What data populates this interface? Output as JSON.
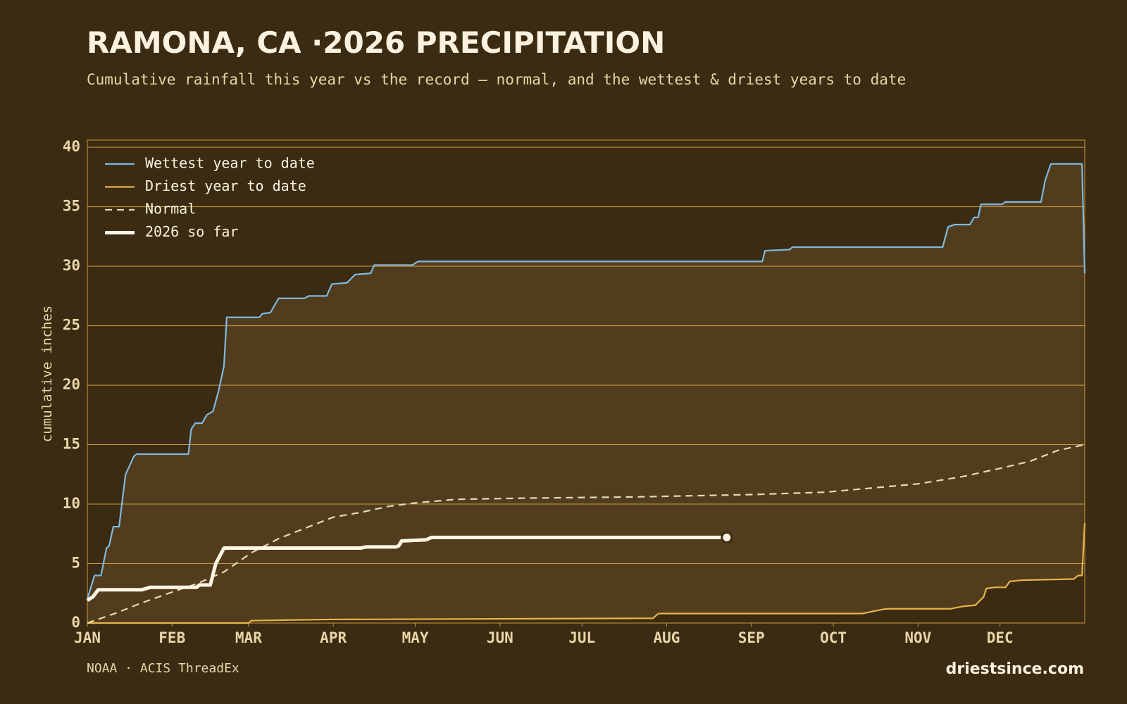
{
  "chart_data": {
    "type": "line",
    "title": "RAMONA, CA ·2026 PRECIPITATION",
    "subtitle": "Cumulative rainfall this year vs the record — normal, and the wettest & driest years to date",
    "y_label": "cumulative inches",
    "source": "NOAA · ACIS ThreadEx",
    "brand": "driestsince.com",
    "xlim": [
      0,
      365
    ],
    "ylim": [
      0,
      40.6
    ],
    "xticks": [
      {
        "value": 0,
        "label": "JAN"
      },
      {
        "value": 31,
        "label": "FEB"
      },
      {
        "value": 59,
        "label": "MAR"
      },
      {
        "value": 90,
        "label": "APR"
      },
      {
        "value": 120,
        "label": "MAY"
      },
      {
        "value": 151,
        "label": "JUN"
      },
      {
        "value": 181,
        "label": "JUL"
      },
      {
        "value": 212,
        "label": "AUG"
      },
      {
        "value": 243,
        "label": "SEP"
      },
      {
        "value": 273,
        "label": "OCT"
      },
      {
        "value": 304,
        "label": "NOV"
      },
      {
        "value": 334,
        "label": "DEC"
      }
    ],
    "yticks": [
      0,
      5,
      10,
      15,
      20,
      25,
      30,
      35,
      40
    ],
    "grid": true,
    "legend": "upper left",
    "band_color": "#513d1d",
    "series": [
      {
        "name": "Wettest year to date",
        "color": "#7fb8e0",
        "x": [
          0,
          2.6,
          5,
          7,
          8,
          9.5,
          11.6,
          14,
          17,
          18,
          37,
          38,
          39.5,
          42,
          43.7,
          46,
          48,
          50,
          51,
          63,
          64,
          67,
          70,
          79.5,
          81,
          87.6,
          89.5,
          95,
          98,
          103.7,
          105,
          119,
          121,
          247,
          248,
          257,
          258,
          313,
          315,
          317.4,
          323,
          324.5,
          326,
          327,
          334.7,
          336,
          349,
          350.5,
          352.6,
          364,
          365
        ],
        "values": [
          2.0,
          4.0,
          4.0,
          6.3,
          6.5,
          8.1,
          8.1,
          12.5,
          14.0,
          14.2,
          14.2,
          16.3,
          16.8,
          16.8,
          17.5,
          17.8,
          19.5,
          21.6,
          25.7,
          25.7,
          26.0,
          26.1,
          27.3,
          27.3,
          27.5,
          27.5,
          28.5,
          28.6,
          29.3,
          29.4,
          30.1,
          30.1,
          30.4,
          30.4,
          31.3,
          31.4,
          31.6,
          31.6,
          33.3,
          33.5,
          33.5,
          34.1,
          34.1,
          35.2,
          35.2,
          35.4,
          35.4,
          37.2,
          38.6,
          38.6,
          29.4
        ]
      },
      {
        "name": "Driest year to date",
        "color": "#e8b34a",
        "x": [
          0,
          59,
          60,
          73,
          89,
          207,
          209,
          283.7,
          290,
          292.6,
          316,
          320.5,
          325,
          328,
          329,
          332,
          336,
          337.6,
          341.6,
          361,
          362.6,
          364,
          365
        ],
        "values": [
          0,
          0,
          0.2,
          0.25,
          0.3,
          0.4,
          0.8,
          0.8,
          1.1,
          1.2,
          1.2,
          1.4,
          1.5,
          2.2,
          2.9,
          3.0,
          3.0,
          3.5,
          3.6,
          3.7,
          4.0,
          4.0,
          8.4
        ]
      },
      {
        "name": "Normal",
        "color": "#e8d9b5",
        "dashed": true,
        "x": [
          0,
          10,
          20,
          31,
          40,
          50,
          60,
          70,
          80,
          90,
          100,
          110,
          120,
          135,
          160,
          200,
          243,
          270,
          304,
          320,
          334,
          345,
          355,
          365
        ],
        "values": [
          0,
          0.8,
          1.7,
          2.6,
          3.3,
          4.3,
          5.9,
          7.1,
          8.0,
          8.9,
          9.3,
          9.8,
          10.1,
          10.4,
          10.5,
          10.6,
          10.8,
          11.0,
          11.7,
          12.3,
          13.0,
          13.6,
          14.5,
          15.0
        ]
      },
      {
        "name": "2026 so far",
        "color": "#fff6e8",
        "highlight": true,
        "x": [
          0,
          2,
          4,
          20,
          23,
          40,
          41,
          45,
          47,
          50,
          100,
          102,
          113,
          114,
          115,
          124,
          126,
          234
        ],
        "values": [
          1.9,
          2.2,
          2.8,
          2.8,
          3.0,
          3.0,
          3.2,
          3.2,
          5.0,
          6.3,
          6.3,
          6.4,
          6.4,
          6.5,
          6.9,
          7.0,
          7.2,
          7.2
        ]
      }
    ]
  }
}
